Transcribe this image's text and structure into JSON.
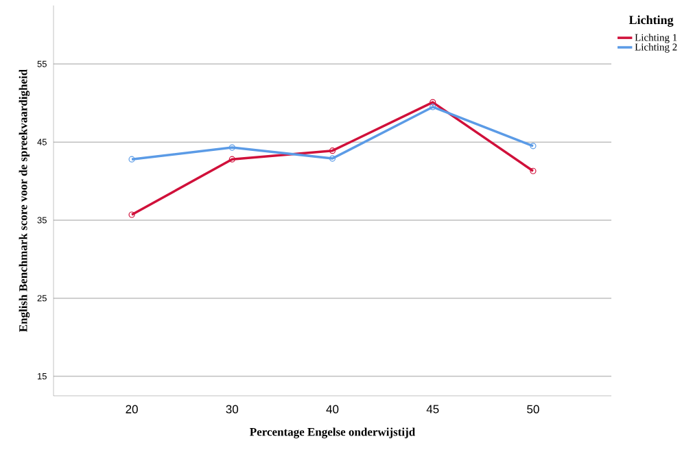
{
  "chart_data": {
    "type": "line",
    "xlabel": "Percentage Engelse onderwijstijd",
    "ylabel": "English Benchmark score voor de spreekvaardigheid",
    "legend_title": "Lichting",
    "categories": [
      "20",
      "30",
      "40",
      "45",
      "50"
    ],
    "series": [
      {
        "name": "Lichting 1",
        "color": "#d0103a",
        "values": [
          35.7,
          42.8,
          43.9,
          50.1,
          41.3
        ]
      },
      {
        "name": "Lichting 2",
        "color": "#5b9be6",
        "values": [
          42.8,
          44.3,
          42.9,
          49.5,
          44.5
        ]
      }
    ],
    "ylim": [
      12.5,
      62.5
    ],
    "yticks": [
      15,
      25,
      35,
      45,
      55
    ],
    "grid": "y",
    "legend": "top right",
    "marker": "circle",
    "line_style": "solid"
  }
}
